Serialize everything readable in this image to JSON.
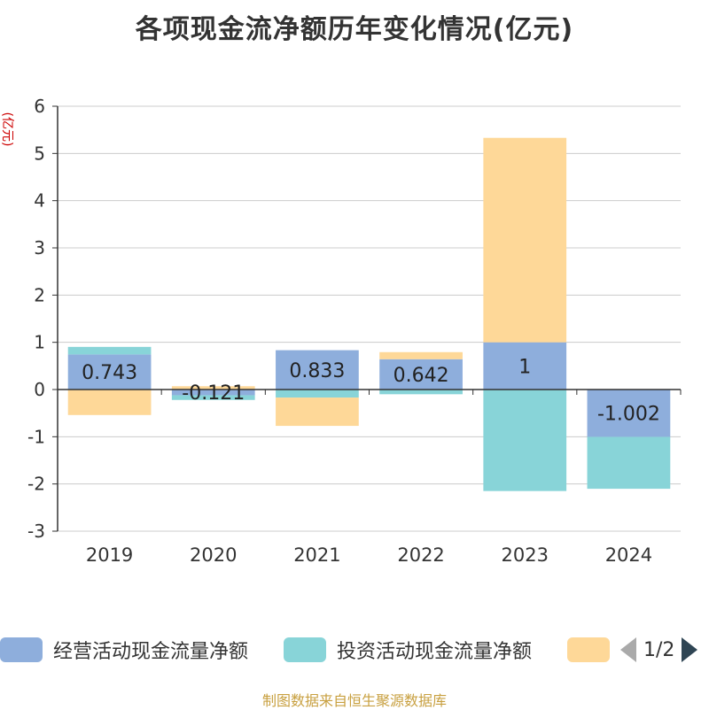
{
  "chart_data": {
    "type": "bar",
    "stacked": true,
    "title": "各项现金流净额历年变化情况(亿元)",
    "ylabel": "(亿元)",
    "categories": [
      "2019",
      "2020",
      "2021",
      "2022",
      "2023",
      "2024"
    ],
    "ylim": [
      -3,
      6
    ],
    "yticks": [
      6,
      5,
      4,
      3,
      2,
      1,
      0,
      -1,
      -2,
      -3
    ],
    "grid": true,
    "series": [
      {
        "name": "经营活动现金流量净额",
        "color": "#8eaedc",
        "values": [
          0.743,
          -0.121,
          0.833,
          0.642,
          1,
          -1.002
        ],
        "show_labels": true
      },
      {
        "name": "投资活动现金流量净额",
        "color": "#88d4d8",
        "values": [
          0.16,
          -0.1,
          -0.17,
          -0.1,
          -2.15,
          -1.1
        ],
        "show_labels": false
      },
      {
        "name": "",
        "color": "#fed898",
        "values": [
          -0.54,
          0.07,
          -0.6,
          0.15,
          4.33,
          0
        ],
        "show_labels": false
      }
    ],
    "legend_position": "bottom"
  },
  "legend": {
    "items": [
      {
        "label": "经营活动现金流量净额",
        "color": "#8eaedc"
      },
      {
        "label": "投资活动现金流量净额",
        "color": "#88d4d8"
      },
      {
        "label": "",
        "color": "#fed898"
      }
    ],
    "page_text": "1/2"
  },
  "source": "制图数据来自恒生聚源数据库"
}
